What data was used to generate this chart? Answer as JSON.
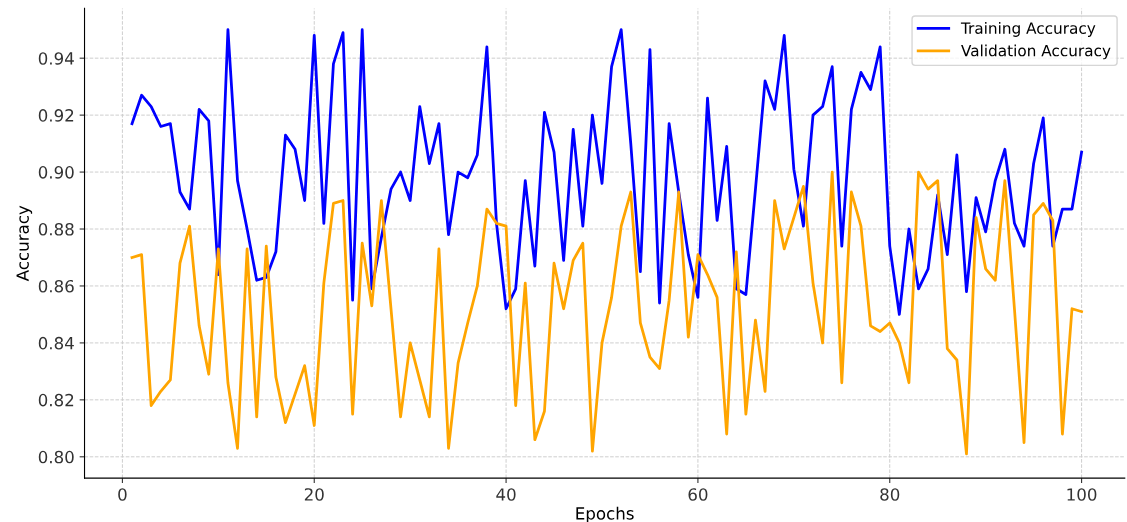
{
  "chart_data": {
    "type": "line",
    "xlabel": "Epochs",
    "ylabel": "Accuracy",
    "x": [
      1,
      2,
      3,
      4,
      5,
      6,
      7,
      8,
      9,
      10,
      11,
      12,
      13,
      14,
      15,
      16,
      17,
      18,
      19,
      20,
      21,
      22,
      23,
      24,
      25,
      26,
      27,
      28,
      29,
      30,
      31,
      32,
      33,
      34,
      35,
      36,
      37,
      38,
      39,
      40,
      41,
      42,
      43,
      44,
      45,
      46,
      47,
      48,
      49,
      50,
      51,
      52,
      53,
      54,
      55,
      56,
      57,
      58,
      59,
      60,
      61,
      62,
      63,
      64,
      65,
      66,
      67,
      68,
      69,
      70,
      71,
      72,
      73,
      74,
      75,
      76,
      77,
      78,
      79,
      80,
      81,
      82,
      83,
      84,
      85,
      86,
      87,
      88,
      89,
      90,
      91,
      92,
      93,
      94,
      95,
      96,
      97,
      98,
      99,
      100
    ],
    "series": [
      {
        "name": "Training Accuracy",
        "color": "#0000ff",
        "values": [
          0.917,
          0.927,
          0.923,
          0.916,
          0.917,
          0.893,
          0.887,
          0.922,
          0.918,
          0.864,
          0.95,
          0.897,
          0.88,
          0.862,
          0.863,
          0.872,
          0.913,
          0.908,
          0.89,
          0.948,
          0.882,
          0.938,
          0.949,
          0.855,
          0.95,
          0.859,
          0.877,
          0.894,
          0.9,
          0.89,
          0.923,
          0.903,
          0.917,
          0.878,
          0.9,
          0.898,
          0.906,
          0.944,
          0.882,
          0.852,
          0.859,
          0.897,
          0.867,
          0.921,
          0.907,
          0.869,
          0.915,
          0.881,
          0.92,
          0.896,
          0.937,
          0.95,
          0.91,
          0.865,
          0.943,
          0.854,
          0.917,
          0.893,
          0.871,
          0.856,
          0.926,
          0.883,
          0.909,
          0.859,
          0.857,
          0.894,
          0.932,
          0.922,
          0.948,
          0.901,
          0.881,
          0.92,
          0.923,
          0.937,
          0.874,
          0.922,
          0.935,
          0.929,
          0.944,
          0.874,
          0.85,
          0.88,
          0.859,
          0.866,
          0.892,
          0.871,
          0.906,
          0.858,
          0.891,
          0.879,
          0.897,
          0.908,
          0.882,
          0.874,
          0.903,
          0.919,
          0.874,
          0.887,
          0.887,
          0.907
        ]
      },
      {
        "name": "Validation Accuracy",
        "color": "#ffa500",
        "values": [
          0.87,
          0.871,
          0.818,
          0.823,
          0.827,
          0.868,
          0.881,
          0.846,
          0.829,
          0.873,
          0.826,
          0.803,
          0.873,
          0.814,
          0.874,
          0.828,
          0.812,
          0.822,
          0.832,
          0.811,
          0.861,
          0.889,
          0.89,
          0.815,
          0.875,
          0.853,
          0.89,
          0.852,
          0.814,
          0.84,
          0.827,
          0.814,
          0.873,
          0.803,
          0.833,
          0.847,
          0.86,
          0.887,
          0.882,
          0.881,
          0.818,
          0.861,
          0.806,
          0.816,
          0.868,
          0.852,
          0.869,
          0.875,
          0.802,
          0.84,
          0.856,
          0.881,
          0.893,
          0.847,
          0.835,
          0.831,
          0.855,
          0.893,
          0.842,
          0.871,
          0.864,
          0.856,
          0.808,
          0.872,
          0.815,
          0.848,
          0.823,
          0.89,
          0.873,
          0.884,
          0.895,
          0.861,
          0.84,
          0.9,
          0.826,
          0.893,
          0.881,
          0.846,
          0.844,
          0.847,
          0.84,
          0.826,
          0.9,
          0.894,
          0.897,
          0.838,
          0.834,
          0.801,
          0.884,
          0.866,
          0.862,
          0.897,
          0.852,
          0.805,
          0.885,
          0.889,
          0.883,
          0.808,
          0.852,
          0.851
        ]
      }
    ],
    "xlim": [
      -3.95,
      104.5
    ],
    "ylim": [
      0.7925,
      0.9575
    ],
    "xticks": [
      0,
      20,
      40,
      60,
      80,
      100
    ],
    "yticks": [
      {
        "value": 0.8,
        "label": "0.80"
      },
      {
        "value": 0.82,
        "label": "0.82"
      },
      {
        "value": 0.84,
        "label": "0.84"
      },
      {
        "value": 0.86,
        "label": "0.86"
      },
      {
        "value": 0.88,
        "label": "0.88"
      },
      {
        "value": 0.9,
        "label": "0.90"
      },
      {
        "value": 0.92,
        "label": "0.92"
      },
      {
        "value": 0.94,
        "label": "0.94"
      }
    ],
    "grid": true,
    "legend": "top right",
    "marker": "none",
    "line_style": "solid"
  }
}
